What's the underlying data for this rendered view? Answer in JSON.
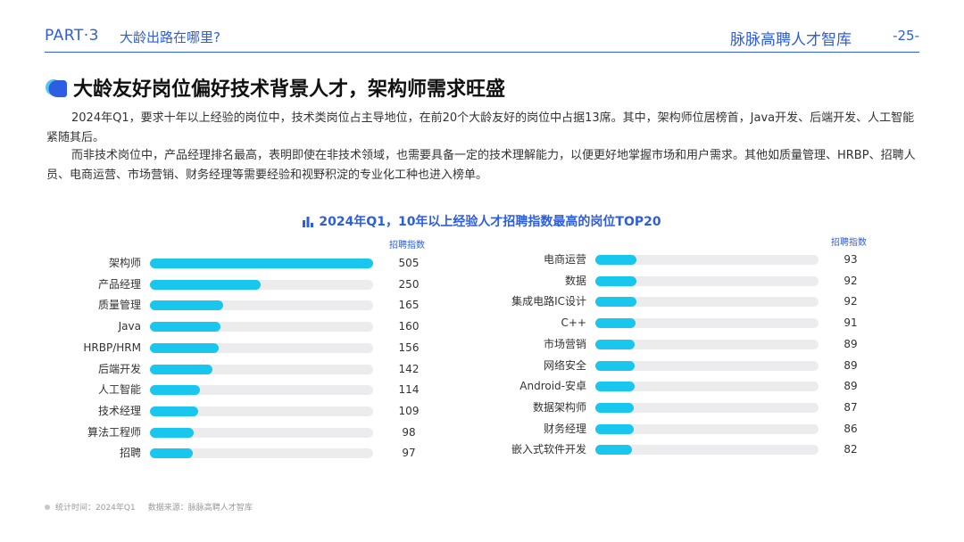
{
  "header": {
    "part": "PART·3",
    "section": "大龄出路在哪里?",
    "brand": "脉脉高聘人才智库",
    "page_number": "-25-"
  },
  "title": "大龄友好岗位偏好技术背景人才，架构师需求旺盛",
  "paragraphs": [
    "2024年Q1，要求十年以上经验的岗位中，技术类岗位占主导地位，在前20个大龄友好的岗位中占据13席。其中，架构师位居榜首，Java开发、后端开发、人工智能紧随其后。",
    "而非技术岗位中，产品经理排名最高，表明即使在非技术领域，也需要具备一定的技术理解能力，以便更好地掌握市场和用户需求。其他如质量管理、HRBP、招聘人员、电商运营、市场营销、财务经理等需要经验和视野积淀的专业化工种也进入榜单。"
  ],
  "chart_data": [
    {
      "type": "bar",
      "orientation": "horizontal",
      "title": "2024年Q1，10年以上经验人才招聘指数最高的岗位TOP20",
      "value_label": "招聘指数",
      "xlim": [
        0,
        505
      ],
      "categories": [
        "架构师",
        "产品经理",
        "质量管理",
        "Java",
        "HRBP/HRM",
        "后端开发",
        "人工智能",
        "技术经理",
        "算法工程师",
        "招聘"
      ],
      "values": [
        505,
        250,
        165,
        160,
        156,
        142,
        114,
        109,
        98,
        97
      ],
      "color": "#19c6ee",
      "grid": false
    },
    {
      "type": "bar",
      "orientation": "horizontal",
      "value_label": "招聘指数",
      "xlim": [
        0,
        505
      ],
      "categories": [
        "电商运营",
        "数据",
        "集成电路IC设计",
        "C++",
        "市场营销",
        "网络安全",
        "Android-安卓",
        "数据架构师",
        "财务经理",
        "嵌入式软件开发"
      ],
      "values": [
        93,
        92,
        92,
        91,
        89,
        89,
        89,
        87,
        86,
        82
      ],
      "color": "#19c6ee",
      "grid": false
    }
  ],
  "footer": {
    "time": "统计时间：2024年Q1",
    "source": "数据来源：脉脉高聘人才智库"
  },
  "colors": {
    "accent": "#2d5de0",
    "bar": "#19c6ee",
    "track": "#ececee"
  }
}
